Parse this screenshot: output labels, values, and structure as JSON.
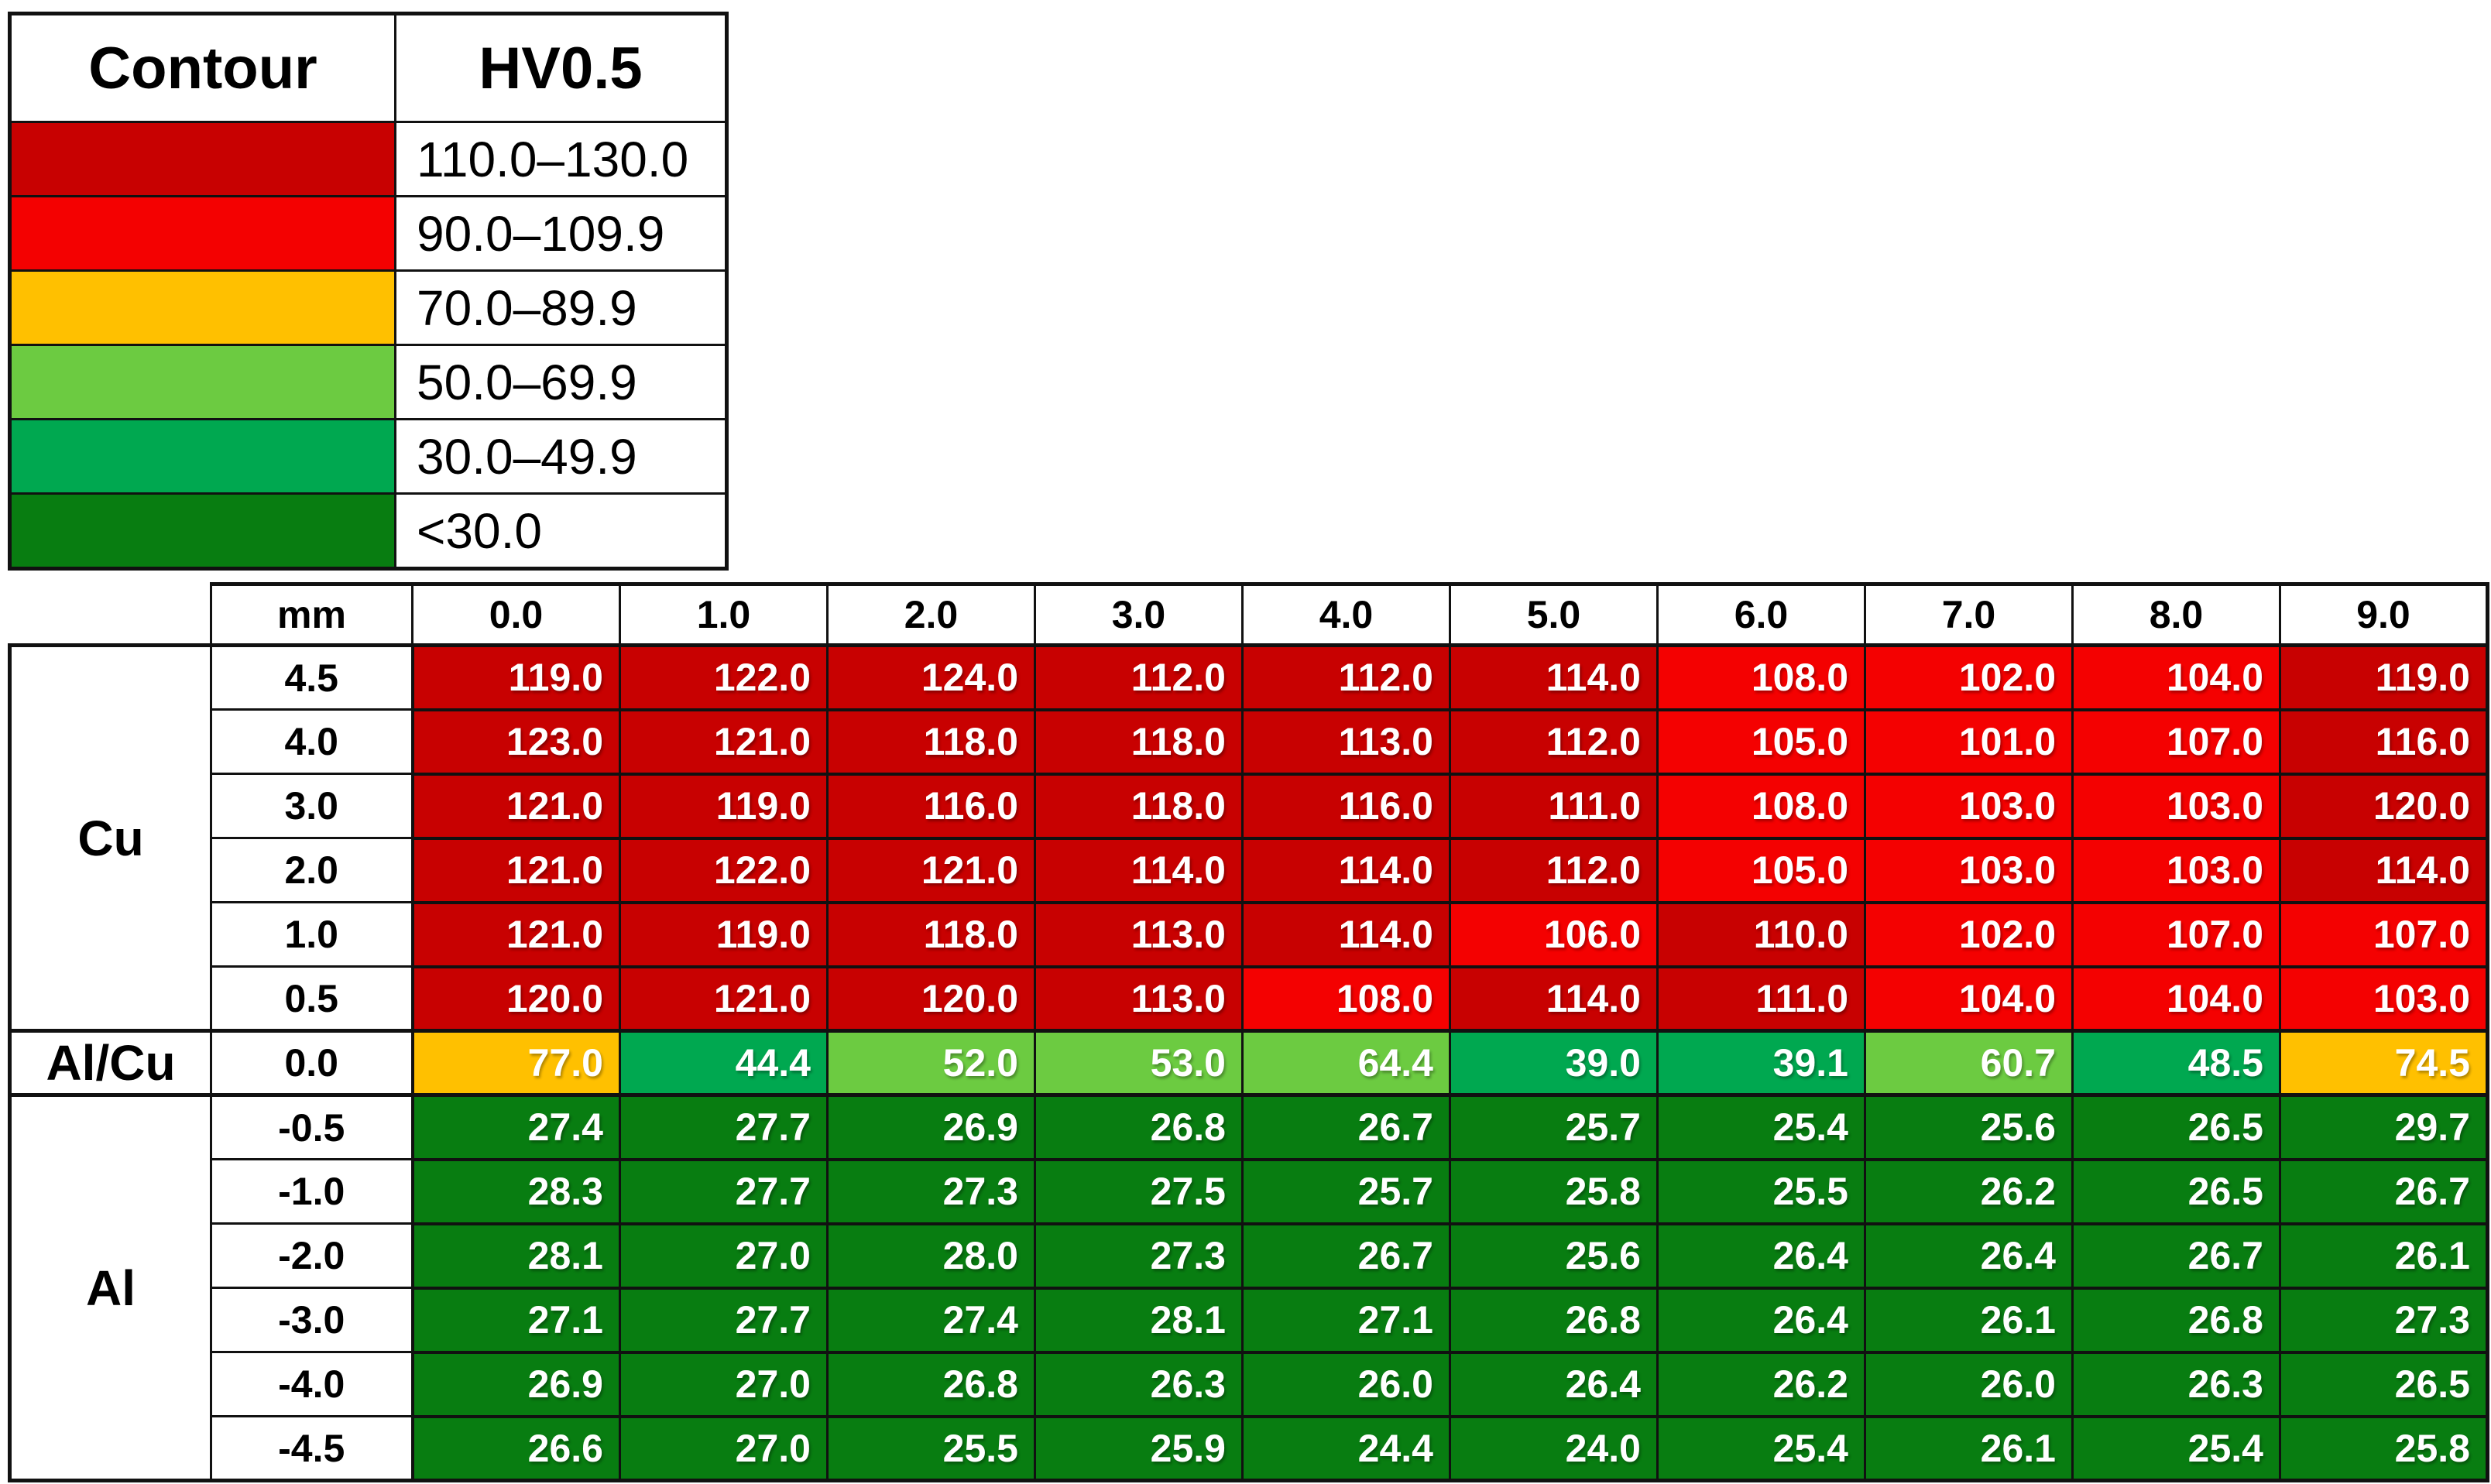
{
  "chart_data": {
    "type": "heatmap",
    "title": "",
    "x_unit_label": "mm",
    "x": [
      "0.0",
      "1.0",
      "2.0",
      "3.0",
      "4.0",
      "5.0",
      "6.0",
      "7.0",
      "8.0",
      "9.0"
    ],
    "row_groups": [
      {
        "material": "Cu",
        "span": 6
      },
      {
        "material": "Al/Cu",
        "span": 1
      },
      {
        "material": "Al",
        "span": 6
      }
    ],
    "rows": [
      {
        "material": "Cu",
        "depth_mm": "4.5",
        "values": [
          "119.0",
          "122.0",
          "124.0",
          "112.0",
          "112.0",
          "114.0",
          "108.0",
          "102.0",
          "104.0",
          "119.0"
        ]
      },
      {
        "material": "Cu",
        "depth_mm": "4.0",
        "values": [
          "123.0",
          "121.0",
          "118.0",
          "118.0",
          "113.0",
          "112.0",
          "105.0",
          "101.0",
          "107.0",
          "116.0"
        ]
      },
      {
        "material": "Cu",
        "depth_mm": "3.0",
        "values": [
          "121.0",
          "119.0",
          "116.0",
          "118.0",
          "116.0",
          "111.0",
          "108.0",
          "103.0",
          "103.0",
          "120.0"
        ]
      },
      {
        "material": "Cu",
        "depth_mm": "2.0",
        "values": [
          "121.0",
          "122.0",
          "121.0",
          "114.0",
          "114.0",
          "112.0",
          "105.0",
          "103.0",
          "103.0",
          "114.0"
        ]
      },
      {
        "material": "Cu",
        "depth_mm": "1.0",
        "values": [
          "121.0",
          "119.0",
          "118.0",
          "113.0",
          "114.0",
          "106.0",
          "110.0",
          "102.0",
          "107.0",
          "107.0"
        ]
      },
      {
        "material": "Cu",
        "depth_mm": "0.5",
        "values": [
          "120.0",
          "121.0",
          "120.0",
          "113.0",
          "108.0",
          "114.0",
          "111.0",
          "104.0",
          "104.0",
          "103.0"
        ]
      },
      {
        "material": "Al/Cu",
        "depth_mm": "0.0",
        "values": [
          "77.0",
          "44.4",
          "52.0",
          "53.0",
          "64.4",
          "39.0",
          "39.1",
          "60.7",
          "48.5",
          "74.5"
        ]
      },
      {
        "material": "Al",
        "depth_mm": "-0.5",
        "values": [
          "27.4",
          "27.7",
          "26.9",
          "26.8",
          "26.7",
          "25.7",
          "25.4",
          "25.6",
          "26.5",
          "29.7"
        ]
      },
      {
        "material": "Al",
        "depth_mm": "-1.0",
        "values": [
          "28.3",
          "27.7",
          "27.3",
          "27.5",
          "25.7",
          "25.8",
          "25.5",
          "26.2",
          "26.5",
          "26.7"
        ]
      },
      {
        "material": "Al",
        "depth_mm": "-2.0",
        "values": [
          "28.1",
          "27.0",
          "28.0",
          "27.3",
          "26.7",
          "25.6",
          "26.4",
          "26.4",
          "26.7",
          "26.1"
        ]
      },
      {
        "material": "Al",
        "depth_mm": "-3.0",
        "values": [
          "27.1",
          "27.7",
          "27.4",
          "28.1",
          "27.1",
          "26.8",
          "26.4",
          "26.1",
          "26.8",
          "27.3"
        ]
      },
      {
        "material": "Al",
        "depth_mm": "-4.0",
        "values": [
          "26.9",
          "27.0",
          "26.8",
          "26.3",
          "26.0",
          "26.4",
          "26.2",
          "26.0",
          "26.3",
          "26.5"
        ]
      },
      {
        "material": "Al",
        "depth_mm": "-4.5",
        "values": [
          "26.6",
          "27.0",
          "25.5",
          "25.9",
          "24.4",
          "24.0",
          "25.4",
          "26.1",
          "25.4",
          "25.8"
        ]
      }
    ],
    "legend_headers": {
      "col1": "Contour",
      "col2": "HV0.5"
    },
    "color_scale": [
      {
        "min": 110.0,
        "max": 130.0,
        "label": "110.0–130.0",
        "color": "#C80101"
      },
      {
        "min": 90.0,
        "max": 109.9,
        "label": "90.0–109.9",
        "color": "#F40101"
      },
      {
        "min": 70.0,
        "max": 89.9,
        "label": "70.0–89.9",
        "color": "#FFC000"
      },
      {
        "min": 50.0,
        "max": 69.9,
        "label": "50.0–69.9",
        "color": "#6CCB41"
      },
      {
        "min": 30.0,
        "max": 49.9,
        "label": "30.0–49.9",
        "color": "#00A850"
      },
      {
        "min": null,
        "max": 29.9,
        "label": "<30.0",
        "color": "#087D11"
      }
    ],
    "legend_position": "top-left",
    "grid": true
  }
}
